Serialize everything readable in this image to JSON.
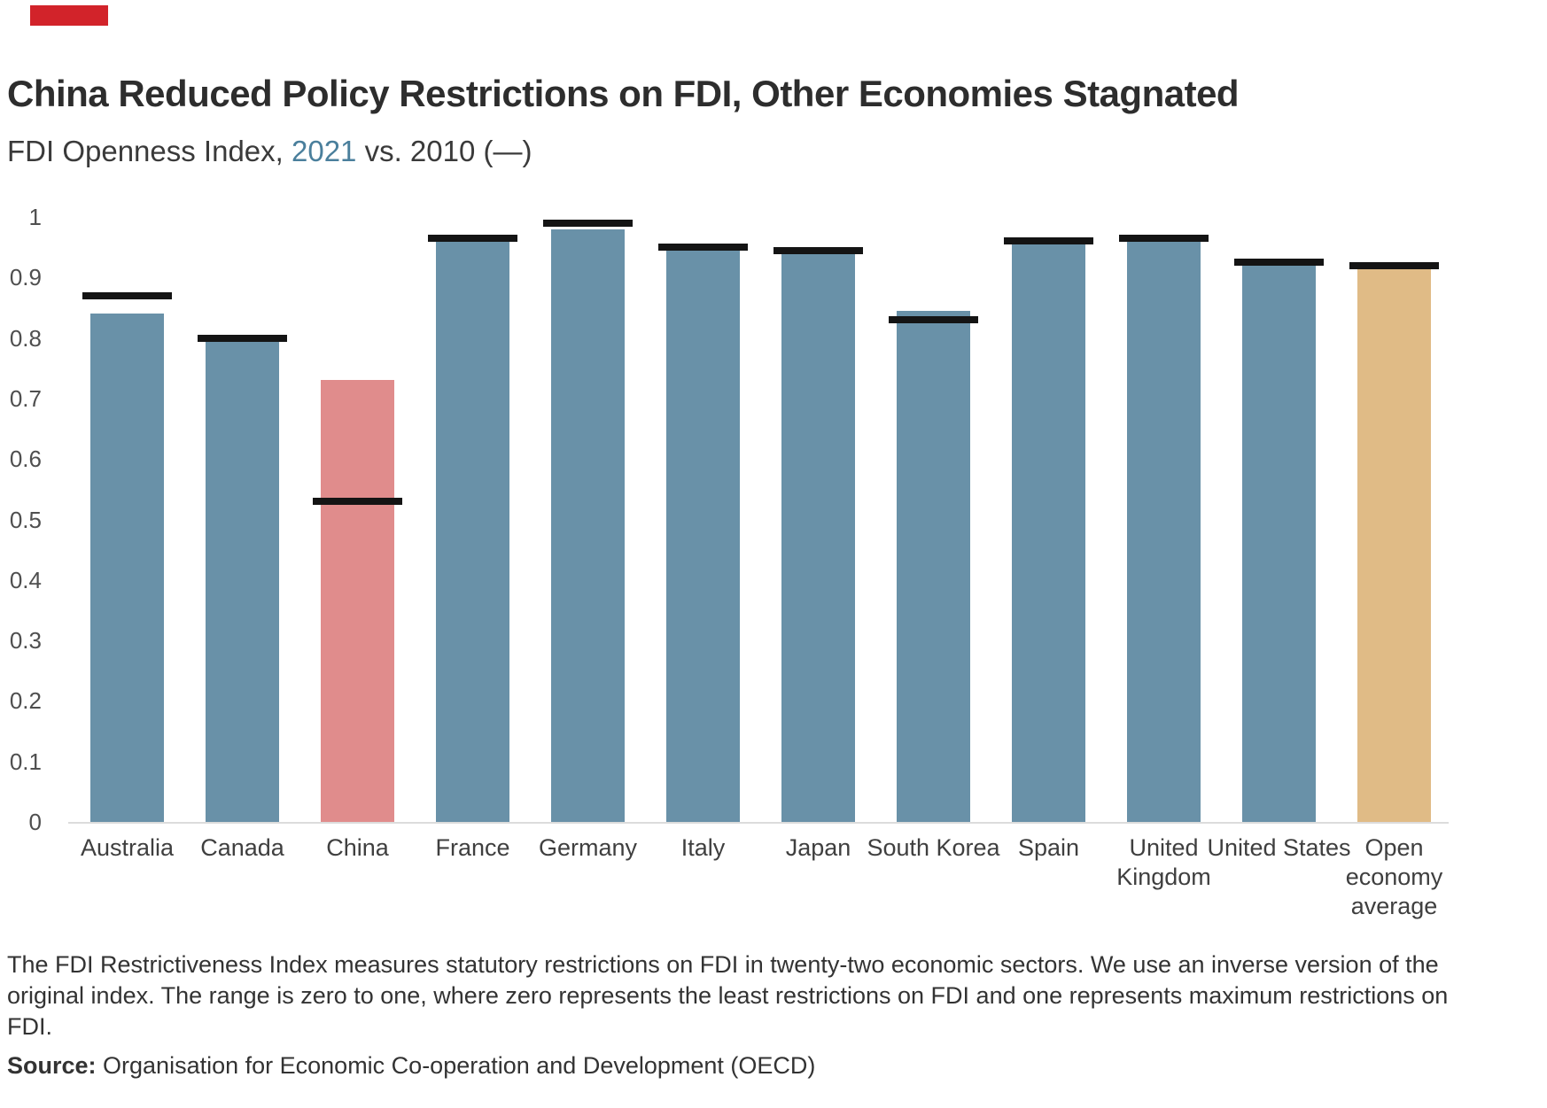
{
  "brand": {
    "color": "#d2232a"
  },
  "header": {
    "title": "China Reduced Policy Restrictions on FDI, Other Economies Stagnated",
    "subtitle_prefix": "FDI Openness Index, ",
    "subtitle_year": "2021",
    "subtitle_suffix": " vs. 2010 (—)",
    "subtitle_year_color": "#4a7f9c"
  },
  "chart_data": {
    "type": "bar",
    "title": "FDI Openness Index, 2021 vs. 2010",
    "categories": [
      "Australia",
      "Canada",
      "China",
      "France",
      "Germany",
      "Italy",
      "Japan",
      "South Korea",
      "Spain",
      "United Kingdom",
      "United States",
      "Open economy average"
    ],
    "series": [
      {
        "name": "2021",
        "style": "bar",
        "values": [
          0.84,
          0.795,
          0.73,
          0.96,
          0.98,
          0.945,
          0.94,
          0.845,
          0.955,
          0.96,
          0.92,
          0.915
        ]
      },
      {
        "name": "2010",
        "style": "dash-marker",
        "values": [
          0.87,
          0.8,
          0.53,
          0.965,
          0.99,
          0.95,
          0.945,
          0.83,
          0.96,
          0.965,
          0.925,
          0.92
        ]
      }
    ],
    "bar_colors": [
      "#6991a8",
      "#6991a8",
      "#e08c8c",
      "#6991a8",
      "#6991a8",
      "#6991a8",
      "#6991a8",
      "#6991a8",
      "#6991a8",
      "#6991a8",
      "#6991a8",
      "#e0bb86"
    ],
    "highlight_bars": {
      "China": "#e08c8c",
      "Open economy average": "#e0bb86"
    },
    "marker_color": "#141414",
    "ylim": [
      0,
      1
    ],
    "ytick_labels": [
      "0",
      "0.1",
      "0.2",
      "0.3",
      "0.4",
      "0.5",
      "0.6",
      "0.7",
      "0.8",
      "0.9",
      "1"
    ],
    "xlabel": "",
    "ylabel": "",
    "grid": false,
    "legend_position": "in-subtitle"
  },
  "footnote": {
    "lines": [
      "The FDI Restrictiveness Index measures statutory restrictions on FDI in twenty-two economic sectors. We use an inverse version of the",
      "original index. The range is zero to one, where zero represents the least restrictions on FDI and one represents maximum restrictions on",
      "FDI."
    ],
    "source_label": "Source:",
    "source_text": " Organisation for Economic Co-operation and Development (OECD)"
  }
}
